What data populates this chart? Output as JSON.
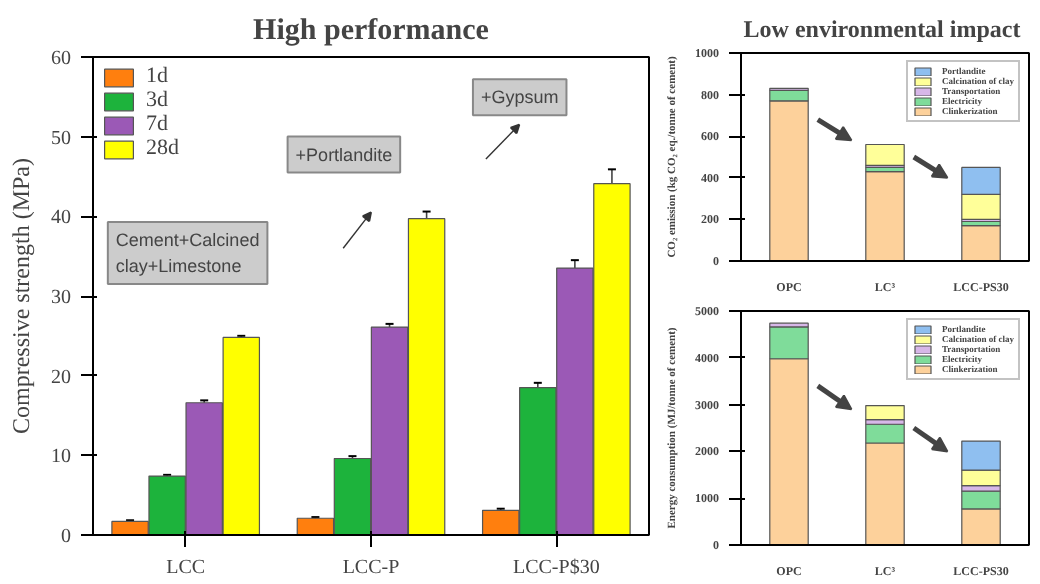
{
  "chart_data": [
    {
      "type": "bar",
      "title": "High performance",
      "ylabel": "Compressive strength (MPa)",
      "categories": [
        "LCC",
        "LCC-P",
        "LCC-P$30"
      ],
      "ylim": [
        0,
        60
      ],
      "yticks": [
        0,
        10,
        20,
        30,
        40,
        50,
        60
      ],
      "legend": "top left",
      "grid": false,
      "series": [
        {
          "name": "1d",
          "color": "#ff7f0e",
          "values": [
            1.7,
            2.1,
            3.1
          ],
          "errors": [
            0.15,
            0.15,
            0.2
          ]
        },
        {
          "name": "3d",
          "color": "#1db33c",
          "values": [
            7.4,
            9.6,
            18.5
          ],
          "errors": [
            0.15,
            0.3,
            0.6
          ]
        },
        {
          "name": "7d",
          "color": "#9b59b6",
          "values": [
            16.6,
            26.1,
            33.5
          ],
          "errors": [
            0.3,
            0.4,
            1.0
          ]
        },
        {
          "name": "28d",
          "color": "#ffff00",
          "values": [
            24.8,
            39.7,
            44.1
          ],
          "errors": [
            0.2,
            0.9,
            1.8
          ]
        }
      ],
      "annotations": [
        "Cement+Calcined clay+Limestone",
        "+Portlandite",
        "+Gypsum"
      ]
    },
    {
      "type": "bar",
      "stacked": true,
      "title": "Low environmental  impact",
      "ylabel": "CO₂ emission (kg CO₂ eq./tonne of cement)",
      "categories": [
        "OPC",
        "LC³",
        "LCC-PS30"
      ],
      "ylim": [
        0,
        1000
      ],
      "yticks": [
        0,
        200,
        400,
        600,
        800,
        1000
      ],
      "legend": "top right",
      "grid": false,
      "series": [
        {
          "name": "Clinkerization",
          "color": "#fdd19b",
          "values": [
            770,
            430,
            170
          ]
        },
        {
          "name": "Electricity",
          "color": "#7fdc9a",
          "values": [
            50,
            20,
            20
          ]
        },
        {
          "name": "Transportation",
          "color": "#d7b7e8",
          "values": [
            10,
            10,
            10
          ]
        },
        {
          "name": "Calcination of clay",
          "color": "#ffff99",
          "values": [
            null,
            100,
            120
          ]
        },
        {
          "name": "Portlandite",
          "color": "#8fbff0",
          "values": [
            null,
            null,
            130
          ]
        }
      ]
    },
    {
      "type": "bar",
      "stacked": true,
      "ylabel": "Energy consumption (MJ/tonne of cement)",
      "categories": [
        "OPC",
        "LC³",
        "LCC-PS30"
      ],
      "ylim": [
        0,
        5000
      ],
      "yticks": [
        0,
        1000,
        2000,
        3000,
        4000,
        5000
      ],
      "legend": "top right",
      "grid": false,
      "series": [
        {
          "name": "Clinkerization",
          "color": "#fdd19b",
          "values": [
            3980,
            2180,
            770
          ]
        },
        {
          "name": "Electricity",
          "color": "#7fdc9a",
          "values": [
            680,
            400,
            380
          ]
        },
        {
          "name": "Transportation",
          "color": "#d7b7e8",
          "values": [
            80,
            100,
            120
          ]
        },
        {
          "name": "Calcination of clay",
          "color": "#ffff99",
          "values": [
            null,
            300,
            330
          ]
        },
        {
          "name": "Portlandite",
          "color": "#8fbff0",
          "values": [
            null,
            null,
            620
          ]
        }
      ]
    }
  ]
}
